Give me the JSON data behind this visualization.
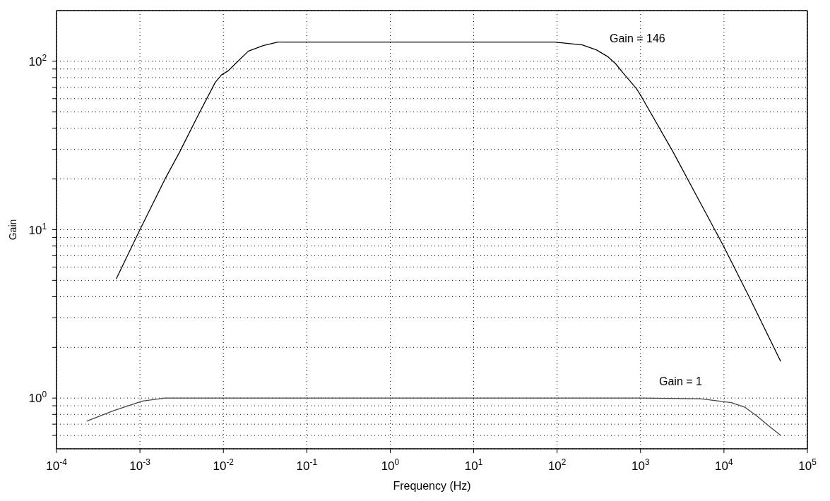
{
  "chart_data": {
    "type": "line",
    "xlabel": "Frequency (Hz)",
    "ylabel": "Gain",
    "xlim": [
      0.0001,
      100000
    ],
    "ylim": [
      0.5,
      200
    ],
    "log": "xy",
    "grid": true,
    "line_style": "solid",
    "xticks": [
      {
        "value": 0.0001,
        "label": "10$^{-4}$"
      },
      {
        "value": 0.001,
        "label": "10$^{-3}$"
      },
      {
        "value": 0.01,
        "label": "10$^{-2}$"
      },
      {
        "value": 0.1,
        "label": "10$^{-1}$"
      },
      {
        "value": 1,
        "label": "10$^{0}$"
      },
      {
        "value": 10,
        "label": "10$^{1}$"
      },
      {
        "value": 100,
        "label": "10$^{2}$"
      },
      {
        "value": 1000,
        "label": "10$^{3}$"
      },
      {
        "value": 10000,
        "label": "10$^{4}$"
      },
      {
        "value": 100000,
        "label": "10$^{5}$"
      }
    ],
    "yticks": [
      {
        "value": 0.6,
        "label": null
      },
      {
        "value": 0.7,
        "label": null
      },
      {
        "value": 0.8,
        "label": null
      },
      {
        "value": 0.9,
        "label": null
      },
      {
        "value": 1,
        "label": "10$^{0}$"
      },
      {
        "value": 2,
        "label": null
      },
      {
        "value": 3,
        "label": null
      },
      {
        "value": 4,
        "label": null
      },
      {
        "value": 5,
        "label": null
      },
      {
        "value": 6,
        "label": null
      },
      {
        "value": 7,
        "label": null
      },
      {
        "value": 8,
        "label": null
      },
      {
        "value": 9,
        "label": null
      },
      {
        "value": 10,
        "label": "10$^{1}$"
      },
      {
        "value": 20,
        "label": null
      },
      {
        "value": 30,
        "label": null
      },
      {
        "value": 40,
        "label": null
      },
      {
        "value": 50,
        "label": null
      },
      {
        "value": 60,
        "label": null
      },
      {
        "value": 70,
        "label": null
      },
      {
        "value": 80,
        "label": null
      },
      {
        "value": 90,
        "label": null
      },
      {
        "value": 100,
        "label": "10$^{2}$"
      }
    ],
    "series": [
      {
        "color": "#000000",
        "x": [
          0.00052,
          0.001,
          0.002,
          0.003,
          0.005,
          0.008,
          0.0095,
          0.0115,
          0.014,
          0.02,
          0.03,
          0.045,
          0.1,
          1,
          10,
          93,
          200,
          295,
          400,
          500,
          620,
          890,
          1000,
          2450,
          5000,
          7760,
          10000,
          20000,
          47900
        ],
        "values": [
          5.1,
          10,
          20,
          29,
          48,
          75,
          83,
          88,
          97,
          115,
          124,
          130,
          130,
          130,
          130,
          130,
          125,
          117,
          107,
          97,
          85,
          69,
          63,
          29,
          15,
          10,
          7.9,
          4,
          1.65
        ]
      },
      {
        "color": "#444444",
        "x": [
          0.00023,
          0.00048,
          0.00107,
          0.002,
          0.01,
          1,
          100,
          1000,
          5250,
          12300,
          18000,
          25100,
          35000,
          47900
        ],
        "values": [
          0.73,
          0.84,
          0.96,
          1,
          1,
          1,
          1,
          1,
          0.99,
          0.94,
          0.88,
          0.78,
          0.68,
          0.6
        ]
      }
    ],
    "annotations": [
      "Gain = 146",
      "Gain = 1"
    ]
  }
}
